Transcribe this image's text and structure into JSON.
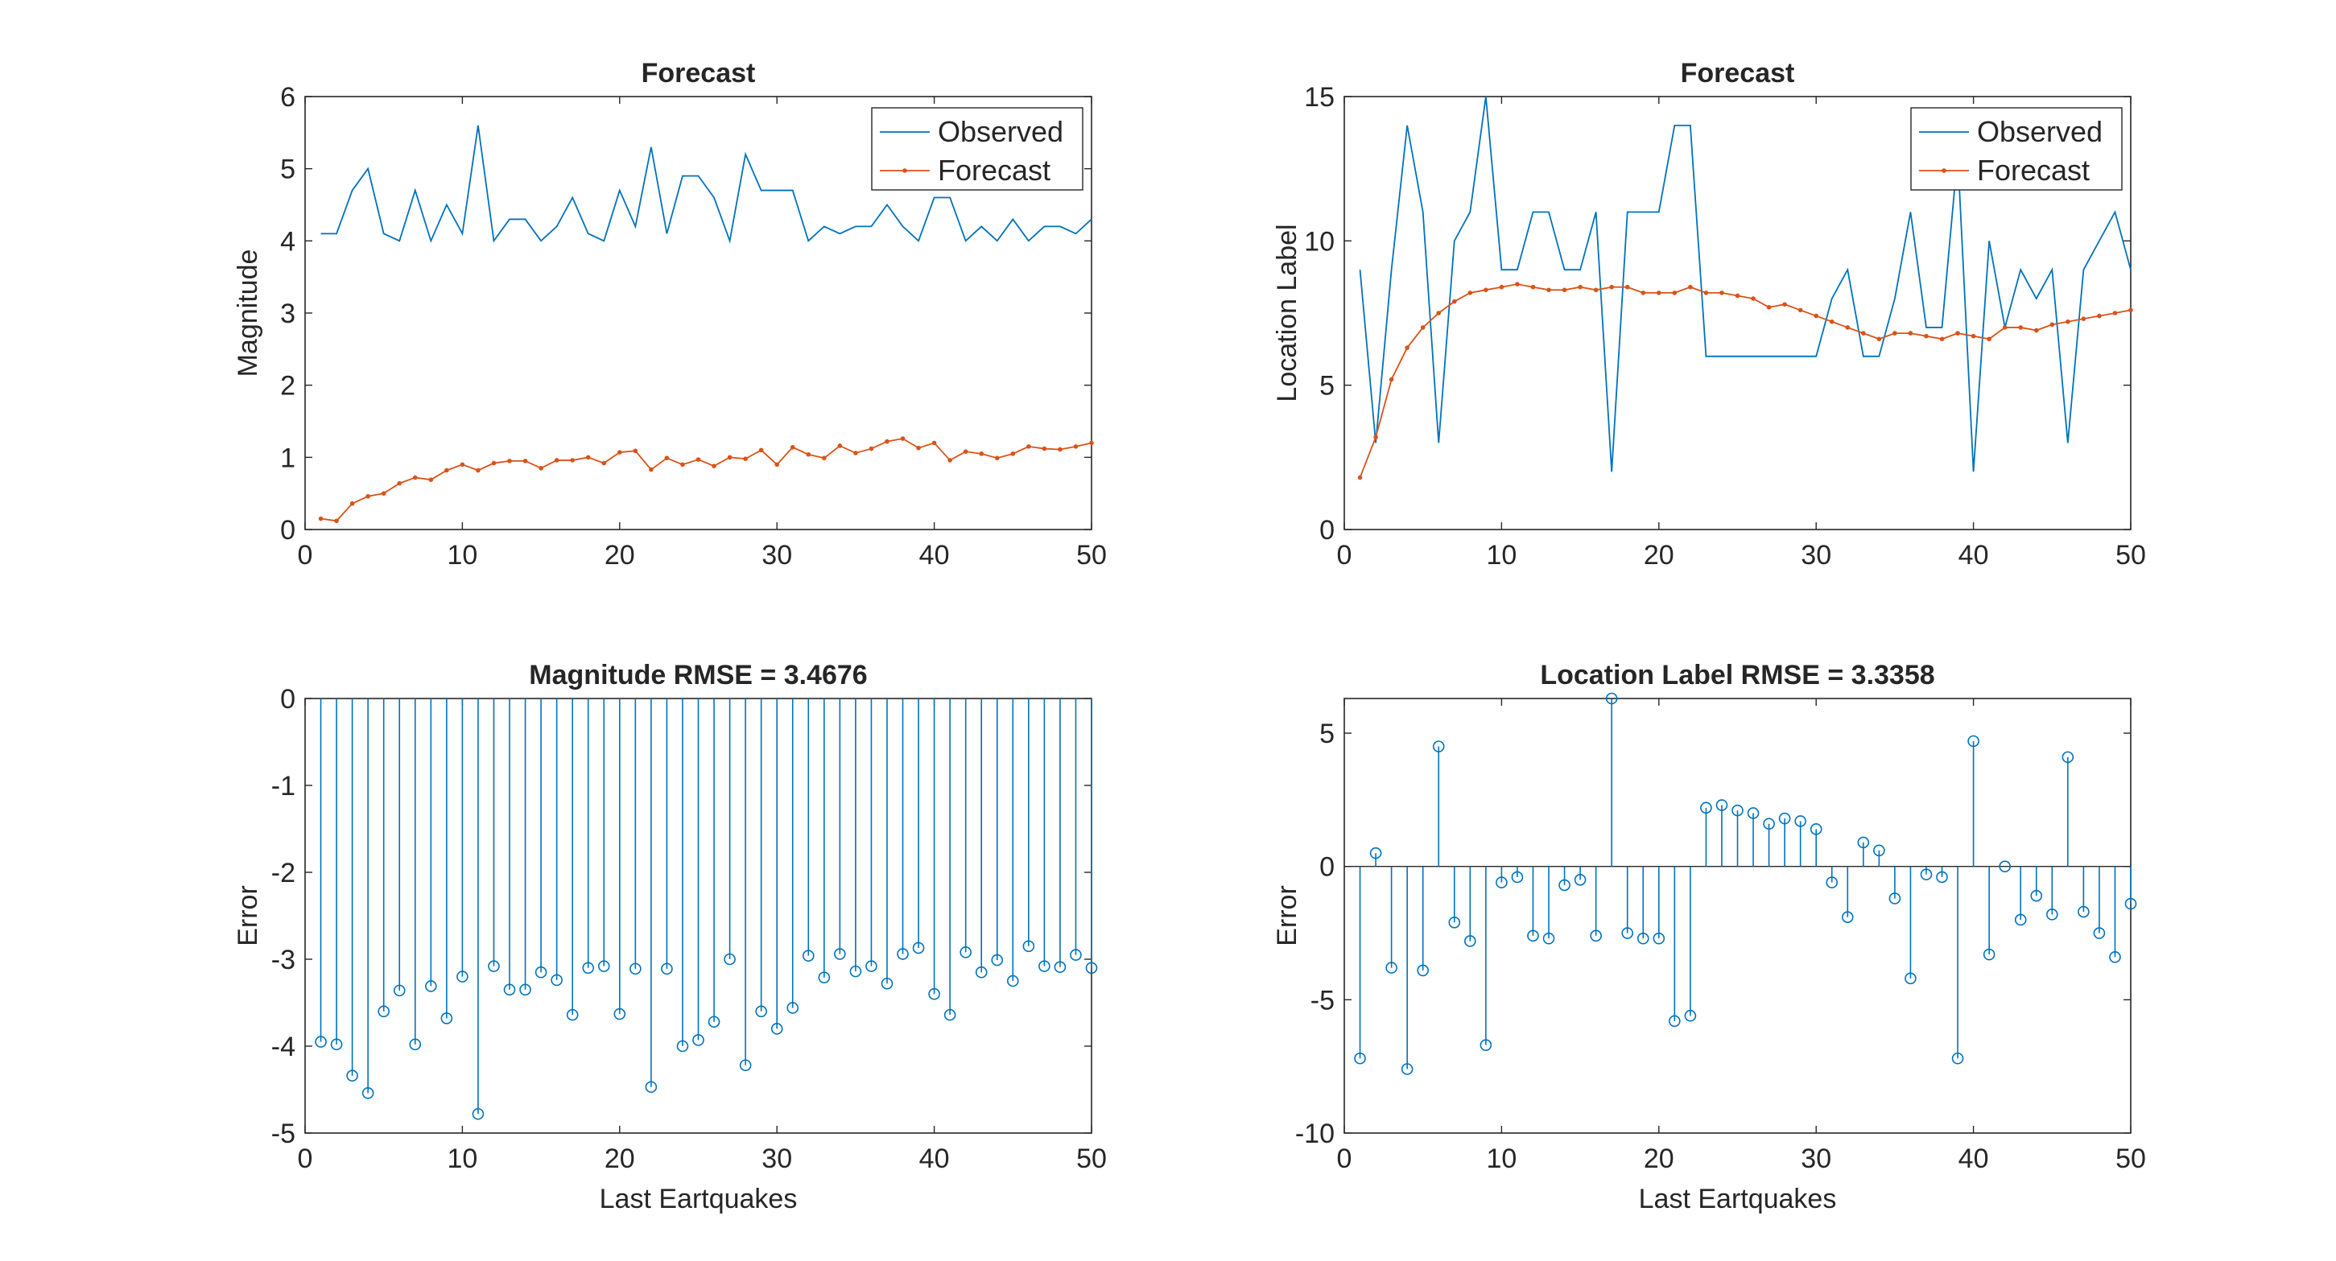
{
  "figure": {
    "background": "#ffffff"
  },
  "colors": {
    "observed": "#0072BD",
    "forecast": "#D95319",
    "axis": "#262626"
  },
  "chart_data": [
    {
      "type": "line",
      "title": "Forecast",
      "xlabel": "",
      "ylabel": "Magnitude",
      "xlim": [
        0,
        50
      ],
      "ylim": [
        0,
        6
      ],
      "xticks": [
        0,
        10,
        20,
        30,
        40,
        50
      ],
      "yticks": [
        0,
        1,
        2,
        3,
        4,
        5,
        6
      ],
      "legend": {
        "position": "top-right",
        "entries": [
          "Observed",
          "Forecast"
        ]
      },
      "series": [
        {
          "name": "Observed",
          "style": "line",
          "x": [
            1,
            2,
            3,
            4,
            5,
            6,
            7,
            8,
            9,
            10,
            11,
            12,
            13,
            14,
            15,
            16,
            17,
            18,
            19,
            20,
            21,
            22,
            23,
            24,
            25,
            26,
            27,
            28,
            29,
            30,
            31,
            32,
            33,
            34,
            35,
            36,
            37,
            38,
            39,
            40,
            41,
            42,
            43,
            44,
            45,
            46,
            47,
            48,
            49,
            50
          ],
          "values": [
            4.1,
            4.1,
            4.7,
            5.0,
            4.1,
            4.0,
            4.7,
            4.0,
            4.5,
            4.1,
            5.6,
            4.0,
            4.3,
            4.3,
            4.0,
            4.2,
            4.6,
            4.1,
            4.0,
            4.7,
            4.2,
            5.3,
            4.1,
            4.9,
            4.9,
            4.6,
            4.0,
            5.2,
            4.7,
            4.7,
            4.7,
            4.0,
            4.2,
            4.1,
            4.2,
            4.2,
            4.5,
            4.2,
            4.0,
            4.6,
            4.6,
            4.0,
            4.2,
            4.0,
            4.3,
            4.0,
            4.2,
            4.2,
            4.1,
            4.3
          ]
        },
        {
          "name": "Forecast",
          "style": "line-dot",
          "x": [
            1,
            2,
            3,
            4,
            5,
            6,
            7,
            8,
            9,
            10,
            11,
            12,
            13,
            14,
            15,
            16,
            17,
            18,
            19,
            20,
            21,
            22,
            23,
            24,
            25,
            26,
            27,
            28,
            29,
            30,
            31,
            32,
            33,
            34,
            35,
            36,
            37,
            38,
            39,
            40,
            41,
            42,
            43,
            44,
            45,
            46,
            47,
            48,
            49,
            50
          ],
          "values": [
            0.15,
            0.12,
            0.36,
            0.46,
            0.5,
            0.64,
            0.72,
            0.69,
            0.82,
            0.9,
            0.82,
            0.92,
            0.95,
            0.95,
            0.85,
            0.96,
            0.96,
            1.0,
            0.92,
            1.07,
            1.09,
            0.83,
            0.99,
            0.9,
            0.97,
            0.88,
            1.0,
            0.98,
            1.1,
            0.9,
            1.14,
            1.04,
            0.99,
            1.16,
            1.06,
            1.12,
            1.22,
            1.26,
            1.13,
            1.2,
            0.96,
            1.08,
            1.05,
            0.99,
            1.05,
            1.15,
            1.12,
            1.11,
            1.15,
            1.2
          ]
        }
      ]
    },
    {
      "type": "line",
      "title": "Forecast",
      "xlabel": "",
      "ylabel": "Location Label",
      "xlim": [
        0,
        50
      ],
      "ylim": [
        0,
        15
      ],
      "xticks": [
        0,
        10,
        20,
        30,
        40,
        50
      ],
      "yticks": [
        0,
        5,
        10,
        15
      ],
      "legend": {
        "position": "top-right",
        "entries": [
          "Observed",
          "Forecast"
        ]
      },
      "series": [
        {
          "name": "Observed",
          "style": "line",
          "x": [
            1,
            2,
            3,
            4,
            5,
            6,
            7,
            8,
            9,
            10,
            11,
            12,
            13,
            14,
            15,
            16,
            17,
            18,
            19,
            20,
            21,
            22,
            23,
            24,
            25,
            26,
            27,
            28,
            29,
            30,
            31,
            32,
            33,
            34,
            35,
            36,
            37,
            38,
            39,
            40,
            41,
            42,
            43,
            44,
            45,
            46,
            47,
            48,
            49,
            50
          ],
          "values": [
            9,
            3,
            9,
            14,
            11,
            3,
            10,
            11,
            15,
            9,
            9,
            11,
            11,
            9,
            9,
            11,
            2,
            11,
            11,
            11,
            14,
            14,
            6,
            6,
            6,
            6,
            6,
            6,
            6,
            6,
            8,
            9,
            6,
            6,
            8,
            11,
            7,
            7,
            13,
            2,
            10,
            7,
            9,
            8,
            9,
            3,
            9,
            10,
            11,
            9
          ]
        },
        {
          "name": "Forecast",
          "style": "line-dot",
          "x": [
            1,
            2,
            3,
            4,
            5,
            6,
            7,
            8,
            9,
            10,
            11,
            12,
            13,
            14,
            15,
            16,
            17,
            18,
            19,
            20,
            21,
            22,
            23,
            24,
            25,
            26,
            27,
            28,
            29,
            30,
            31,
            32,
            33,
            34,
            35,
            36,
            37,
            38,
            39,
            40,
            41,
            42,
            43,
            44,
            45,
            46,
            47,
            48,
            49,
            50
          ],
          "values": [
            1.8,
            3.2,
            5.2,
            6.3,
            7.0,
            7.5,
            7.9,
            8.2,
            8.3,
            8.4,
            8.5,
            8.4,
            8.3,
            8.3,
            8.4,
            8.3,
            8.4,
            8.4,
            8.2,
            8.2,
            8.2,
            8.4,
            8.2,
            8.2,
            8.1,
            8.0,
            7.7,
            7.8,
            7.6,
            7.4,
            7.2,
            7.0,
            6.8,
            6.6,
            6.8,
            6.8,
            6.7,
            6.6,
            6.8,
            6.7,
            6.6,
            7.0,
            7.0,
            6.9,
            7.1,
            7.2,
            7.3,
            7.4,
            7.5,
            7.6
          ]
        }
      ]
    },
    {
      "type": "stem",
      "title": "Magnitude RMSE = 3.4676",
      "xlabel": "Last Eartquakes",
      "ylabel": "Error",
      "xlim": [
        0,
        50
      ],
      "ylim": [
        -5,
        0
      ],
      "xticks": [
        0,
        10,
        20,
        30,
        40,
        50
      ],
      "yticks": [
        -5,
        -4,
        -3,
        -2,
        -1,
        0
      ],
      "series": [
        {
          "name": "",
          "style": "stem",
          "x": [
            1,
            2,
            3,
            4,
            5,
            6,
            7,
            8,
            9,
            10,
            11,
            12,
            13,
            14,
            15,
            16,
            17,
            18,
            19,
            20,
            21,
            22,
            23,
            24,
            25,
            26,
            27,
            28,
            29,
            30,
            31,
            32,
            33,
            34,
            35,
            36,
            37,
            38,
            39,
            40,
            41,
            42,
            43,
            44,
            45,
            46,
            47,
            48,
            49,
            50
          ],
          "values": [
            -3.95,
            -3.98,
            -4.34,
            -4.54,
            -3.6,
            -3.36,
            -3.98,
            -3.31,
            -3.68,
            -3.2,
            -4.78,
            -3.08,
            -3.35,
            -3.35,
            -3.15,
            -3.24,
            -3.64,
            -3.1,
            -3.08,
            -3.63,
            -3.11,
            -4.47,
            -3.11,
            -4.0,
            -3.93,
            -3.72,
            -3.0,
            -4.22,
            -3.6,
            -3.8,
            -3.56,
            -2.96,
            -3.21,
            -2.94,
            -3.14,
            -3.08,
            -3.28,
            -2.94,
            -2.87,
            -3.4,
            -3.64,
            -2.92,
            -3.15,
            -3.01,
            -3.25,
            -2.85,
            -3.08,
            -3.09,
            -2.95,
            -3.1
          ]
        }
      ]
    },
    {
      "type": "stem",
      "title": "Location Label RMSE = 3.3358",
      "xlabel": "Last Eartquakes",
      "ylabel": "Error",
      "xlim": [
        0,
        50
      ],
      "ylim": [
        -10,
        6.3
      ],
      "xticks": [
        0,
        10,
        20,
        30,
        40,
        50
      ],
      "yticks": [
        -10,
        -5,
        0,
        5
      ],
      "series": [
        {
          "name": "",
          "style": "stem",
          "x": [
            1,
            2,
            3,
            4,
            5,
            6,
            7,
            8,
            9,
            10,
            11,
            12,
            13,
            14,
            15,
            16,
            17,
            18,
            19,
            20,
            21,
            22,
            23,
            24,
            25,
            26,
            27,
            28,
            29,
            30,
            31,
            32,
            33,
            34,
            35,
            36,
            37,
            38,
            39,
            40,
            41,
            42,
            43,
            44,
            45,
            46,
            47,
            48,
            49,
            50
          ],
          "values": [
            -7.2,
            0.5,
            -3.8,
            -7.6,
            -3.9,
            4.5,
            -2.1,
            -2.8,
            -6.7,
            -0.6,
            -0.4,
            -2.6,
            -2.7,
            -0.7,
            -0.5,
            -2.6,
            6.3,
            -2.5,
            -2.7,
            -2.7,
            -5.8,
            -5.6,
            2.2,
            2.3,
            2.1,
            2.0,
            1.6,
            1.8,
            1.7,
            1.4,
            -0.6,
            -1.9,
            0.9,
            0.6,
            -1.2,
            -4.2,
            -0.3,
            -0.4,
            -7.2,
            4.7,
            -3.3,
            0.0,
            -2.0,
            -1.1,
            -1.8,
            4.1,
            -1.7,
            -2.5,
            -3.4,
            -1.4
          ]
        }
      ]
    }
  ]
}
